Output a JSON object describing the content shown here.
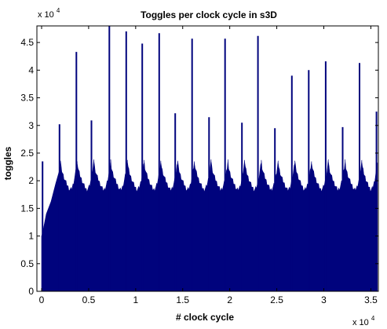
{
  "colors": {
    "fill": "#00037D",
    "background": "#ffffff",
    "axis": "#000000"
  },
  "chart_data": {
    "type": "area",
    "title": "Toggles per clock cycle in s3D",
    "xlabel": "# clock cycle",
    "ylabel": "toggles",
    "x_multiplier_label": "x 10",
    "x_multiplier_exp": "4",
    "y_multiplier_label": "x 10",
    "y_multiplier_exp": "4",
    "xlim": [
      -0.05,
      3.58
    ],
    "ylim": [
      0,
      4.8
    ],
    "xticks": [
      0,
      0.5,
      1,
      1.5,
      2,
      2.5,
      3,
      3.5
    ],
    "xtick_labels": [
      "0",
      "0.5",
      "1",
      "1.5",
      "2",
      "2.5",
      "3",
      "3.5"
    ],
    "yticks": [
      0,
      0.5,
      1,
      1.5,
      2,
      2.5,
      3,
      3.5,
      4,
      4.5
    ],
    "ytick_labels": [
      "0",
      "0.5",
      "1",
      "1.5",
      "2",
      "2.5",
      "3",
      "3.5",
      "4",
      "4.5"
    ],
    "grid": false,
    "baseline_points": [
      {
        "x": 0.0,
        "y": 1.0
      },
      {
        "x": 0.01,
        "y": 1.05
      },
      {
        "x": 0.05,
        "y": 1.4
      },
      {
        "x": 0.1,
        "y": 1.62
      },
      {
        "x": 0.15,
        "y": 1.95
      },
      {
        "x": 0.2,
        "y": 2.25
      },
      {
        "x": 0.25,
        "y": 2.05
      },
      {
        "x": 3.57,
        "y": 2.05
      }
    ],
    "period_pattern": {
      "first_peak_x": 0.2,
      "period": 0.178,
      "last_x": 3.57,
      "peak_top": 2.35,
      "trough": 1.83
    },
    "spikes": [
      {
        "x": 0.01,
        "y": 2.35
      },
      {
        "x": 0.19,
        "y": 3.02
      },
      {
        "x": 0.37,
        "y": 4.33
      },
      {
        "x": 0.53,
        "y": 3.09
      },
      {
        "x": 0.72,
        "y": 4.8
      },
      {
        "x": 0.9,
        "y": 4.7
      },
      {
        "x": 1.07,
        "y": 4.48
      },
      {
        "x": 1.25,
        "y": 4.67
      },
      {
        "x": 1.42,
        "y": 3.22
      },
      {
        "x": 1.6,
        "y": 4.57
      },
      {
        "x": 1.78,
        "y": 3.15
      },
      {
        "x": 1.95,
        "y": 4.57
      },
      {
        "x": 2.13,
        "y": 3.05
      },
      {
        "x": 2.3,
        "y": 4.62
      },
      {
        "x": 2.48,
        "y": 2.95
      },
      {
        "x": 2.66,
        "y": 3.9
      },
      {
        "x": 2.84,
        "y": 4.0
      },
      {
        "x": 3.02,
        "y": 4.16
      },
      {
        "x": 3.2,
        "y": 2.97
      },
      {
        "x": 3.38,
        "y": 4.13
      },
      {
        "x": 3.56,
        "y": 3.25
      }
    ]
  }
}
